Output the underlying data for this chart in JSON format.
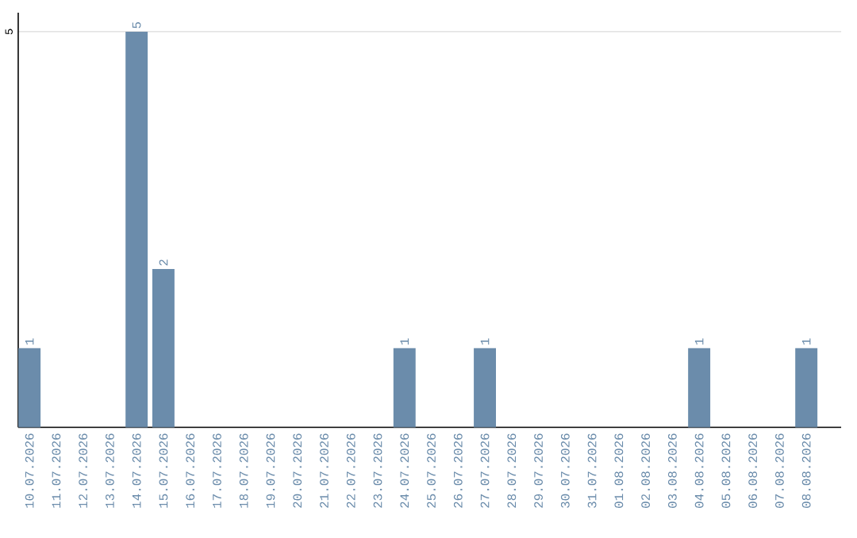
{
  "chart_data": {
    "type": "bar",
    "categories": [
      "10.07.2026",
      "11.07.2026",
      "12.07.2026",
      "13.07.2026",
      "14.07.2026",
      "15.07.2026",
      "16.07.2026",
      "17.07.2026",
      "18.07.2026",
      "19.07.2026",
      "20.07.2026",
      "21.07.2026",
      "22.07.2026",
      "23.07.2026",
      "24.07.2026",
      "25.07.2026",
      "26.07.2026",
      "27.07.2026",
      "28.07.2026",
      "29.07.2026",
      "30.07.2026",
      "31.07.2026",
      "01.08.2026",
      "02.08.2026",
      "03.08.2026",
      "04.08.2026",
      "05.08.2026",
      "06.08.2026",
      "07.08.2026",
      "08.08.2026"
    ],
    "values": [
      1,
      0,
      0,
      0,
      5,
      2,
      0,
      0,
      0,
      0,
      0,
      0,
      0,
      0,
      1,
      0,
      0,
      1,
      0,
      0,
      0,
      0,
      0,
      0,
      0,
      1,
      0,
      0,
      0,
      1
    ],
    "value_labels": [
      "1",
      null,
      null,
      null,
      "5",
      "2",
      null,
      null,
      null,
      null,
      null,
      null,
      null,
      null,
      "1",
      null,
      null,
      "1",
      null,
      null,
      null,
      null,
      null,
      null,
      null,
      "1",
      null,
      null,
      null,
      "1"
    ],
    "color": "#6b8cab",
    "ylim": [
      0,
      5.24
    ],
    "yticks": [
      5
    ],
    "grid": "y"
  }
}
